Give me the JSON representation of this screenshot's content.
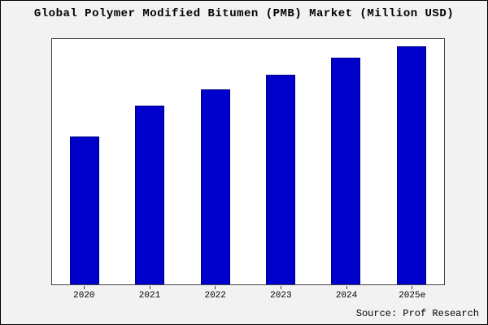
{
  "title": "Global Polymer Modified Bitumen (PMB) Market (Million USD)",
  "source": "Source: Prof Research",
  "colors": {
    "bar_fill": "#0000CD",
    "bar_border": "#000080",
    "background": "#F2F2F2",
    "plot_background": "#FFFFFF"
  },
  "chart_data": {
    "type": "bar",
    "categories": [
      "2020",
      "2021",
      "2022",
      "2023",
      "2024",
      "2025e"
    ],
    "values": [
      62,
      75,
      82,
      88,
      95,
      100
    ],
    "title": "Global Polymer Modified Bitumen (PMB) Market (Million USD)",
    "xlabel": "",
    "ylabel": "",
    "ylim": [
      0,
      103
    ],
    "grid": false,
    "legend": false,
    "y_axis_labels_visible": false
  }
}
